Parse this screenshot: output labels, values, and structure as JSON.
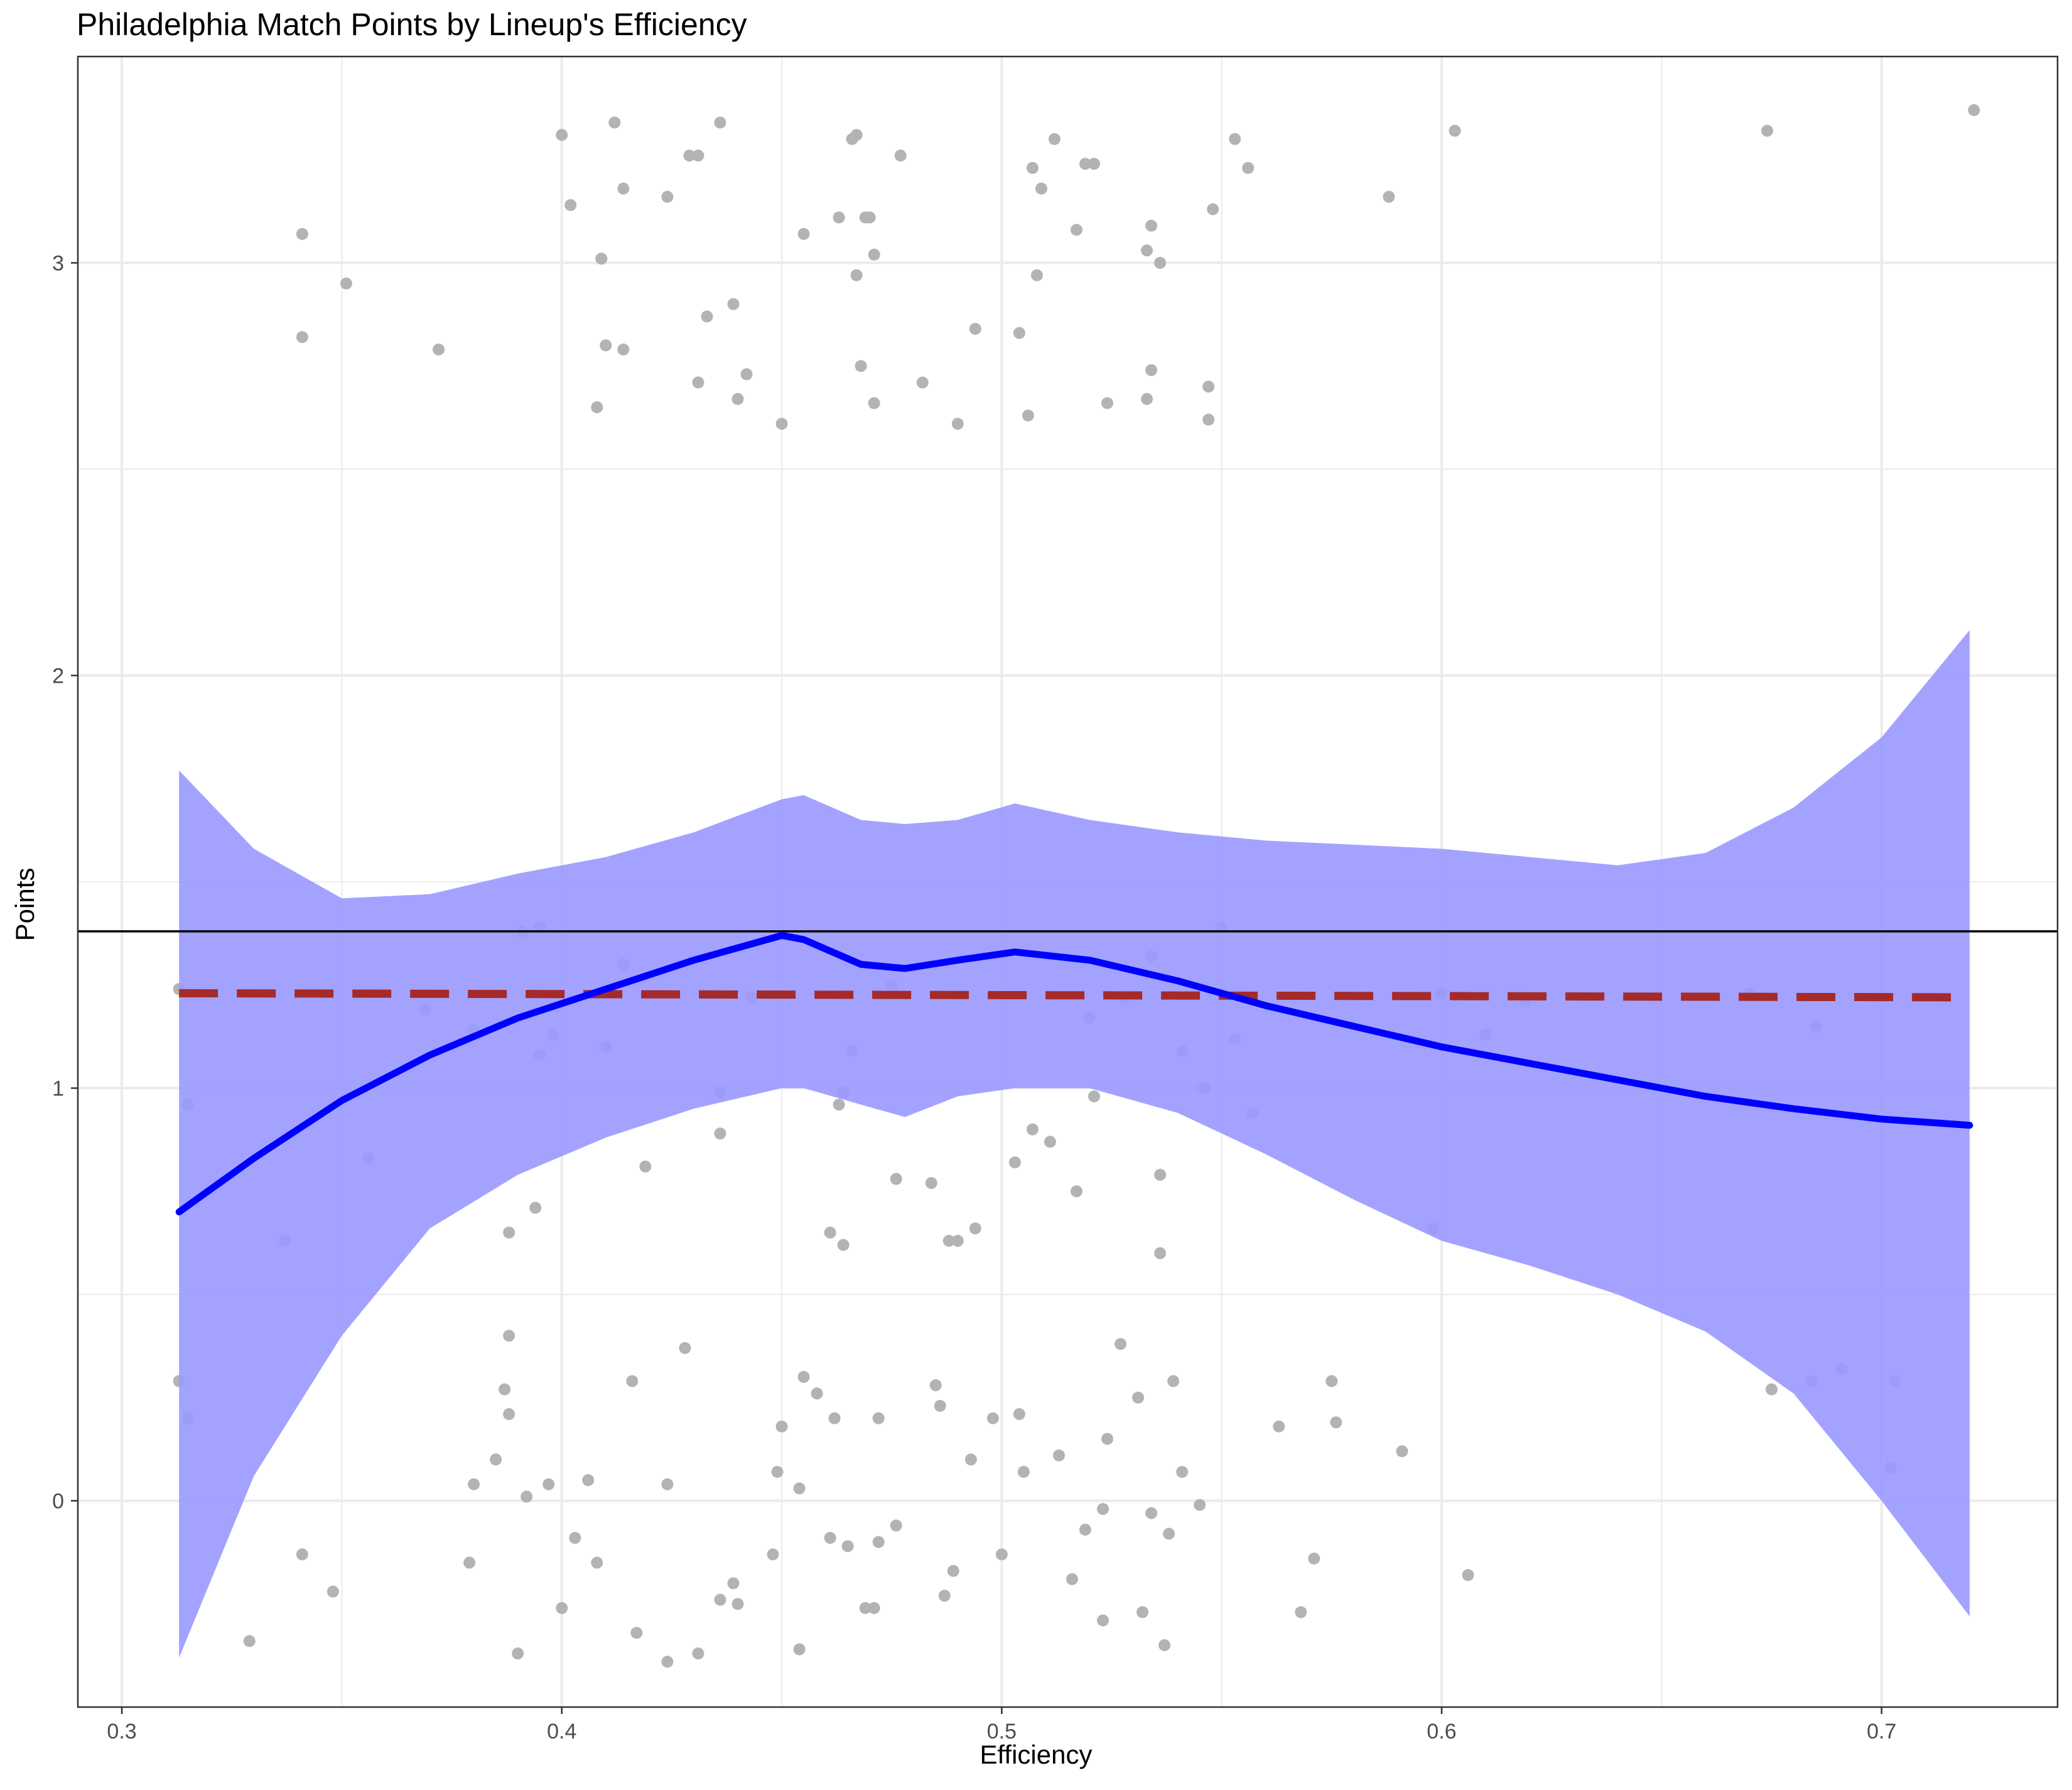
{
  "chart_data": {
    "type": "scatter",
    "title": "Philadelphia Match Points by Lineup's Efficiency",
    "xlabel": "Efficiency",
    "ylabel": "Points",
    "xlim": [
      0.29,
      0.74
    ],
    "ylim": [
      -0.5,
      3.5
    ],
    "x_ticks": [
      "0.3",
      "0.4",
      "0.5",
      "0.6",
      "0.7"
    ],
    "y_ticks": [
      "0",
      "1",
      "2",
      "3"
    ],
    "x_tick_values": [
      0.3,
      0.4,
      0.5,
      0.6,
      0.7
    ],
    "y_tick_values": [
      0,
      1,
      2,
      3
    ],
    "grid": true,
    "colors": {
      "points": "#b3b3b3",
      "smooth_line": "#0000ff",
      "ribbon": "#9999ff",
      "mean_line": "#000000",
      "linear_fit": "#a52a2a",
      "grid": "#ebebeb",
      "panel_border": "#333333"
    },
    "mean_line_y": 1.38,
    "linear_fit": {
      "x": [
        0.313,
        0.72
      ],
      "y": [
        1.23,
        1.22
      ]
    },
    "smooth": {
      "x": [
        0.313,
        0.33,
        0.35,
        0.37,
        0.39,
        0.41,
        0.43,
        0.45,
        0.455,
        0.468,
        0.478,
        0.49,
        0.503,
        0.52,
        0.54,
        0.56,
        0.58,
        0.6,
        0.62,
        0.64,
        0.66,
        0.68,
        0.7,
        0.72
      ],
      "y": [
        0.7,
        0.83,
        0.97,
        1.08,
        1.17,
        1.24,
        1.31,
        1.37,
        1.36,
        1.3,
        1.29,
        1.31,
        1.33,
        1.31,
        1.26,
        1.2,
        1.15,
        1.1,
        1.06,
        1.02,
        0.98,
        0.95,
        0.925,
        0.91
      ],
      "lower": [
        -0.38,
        0.06,
        0.4,
        0.66,
        0.79,
        0.88,
        0.95,
        1.0,
        1.0,
        0.96,
        0.93,
        0.98,
        1.0,
        1.0,
        0.94,
        0.84,
        0.73,
        0.63,
        0.57,
        0.5,
        0.41,
        0.26,
        0.0,
        -0.28
      ],
      "upper": [
        1.77,
        1.58,
        1.46,
        1.47,
        1.52,
        1.56,
        1.62,
        1.7,
        1.71,
        1.65,
        1.64,
        1.65,
        1.69,
        1.65,
        1.62,
        1.6,
        1.59,
        1.58,
        1.56,
        1.54,
        1.57,
        1.68,
        1.85,
        2.11
      ]
    },
    "points": [
      [
        0.341,
        3.07
      ],
      [
        0.341,
        2.82
      ],
      [
        0.351,
        2.95
      ],
      [
        0.372,
        2.79
      ],
      [
        0.4,
        3.31
      ],
      [
        0.402,
        3.14
      ],
      [
        0.409,
        3.01
      ],
      [
        0.41,
        2.8
      ],
      [
        0.408,
        2.65
      ],
      [
        0.412,
        3.34
      ],
      [
        0.414,
        3.18
      ],
      [
        0.414,
        2.79
      ],
      [
        0.424,
        3.16
      ],
      [
        0.429,
        3.26
      ],
      [
        0.431,
        3.26
      ],
      [
        0.433,
        2.87
      ],
      [
        0.431,
        2.71
      ],
      [
        0.436,
        3.34
      ],
      [
        0.439,
        2.9
      ],
      [
        0.44,
        2.67
      ],
      [
        0.442,
        2.73
      ],
      [
        0.45,
        2.61
      ],
      [
        0.455,
        3.07
      ],
      [
        0.463,
        3.11
      ],
      [
        0.466,
        3.3
      ],
      [
        0.467,
        3.31
      ],
      [
        0.467,
        2.97
      ],
      [
        0.469,
        3.11
      ],
      [
        0.47,
        3.11
      ],
      [
        0.468,
        2.75
      ],
      [
        0.471,
        3.02
      ],
      [
        0.471,
        2.66
      ],
      [
        0.477,
        3.26
      ],
      [
        0.482,
        2.71
      ],
      [
        0.49,
        2.61
      ],
      [
        0.494,
        2.84
      ],
      [
        0.504,
        2.83
      ],
      [
        0.506,
        2.63
      ],
      [
        0.507,
        3.23
      ],
      [
        0.508,
        2.97
      ],
      [
        0.509,
        3.18
      ],
      [
        0.512,
        3.3
      ],
      [
        0.517,
        3.08
      ],
      [
        0.519,
        3.24
      ],
      [
        0.521,
        3.24
      ],
      [
        0.524,
        2.66
      ],
      [
        0.533,
        3.03
      ],
      [
        0.534,
        3.09
      ],
      [
        0.534,
        2.74
      ],
      [
        0.533,
        2.67
      ],
      [
        0.536,
        3.0
      ],
      [
        0.547,
        2.62
      ],
      [
        0.547,
        2.7
      ],
      [
        0.548,
        3.13
      ],
      [
        0.553,
        3.3
      ],
      [
        0.556,
        3.23
      ],
      [
        0.588,
        3.16
      ],
      [
        0.603,
        3.32
      ],
      [
        0.674,
        3.32
      ],
      [
        0.721,
        3.37
      ],
      [
        0.313,
        1.24
      ],
      [
        0.315,
        0.96
      ],
      [
        0.337,
        0.63
      ],
      [
        0.356,
        0.83
      ],
      [
        0.369,
        1.19
      ],
      [
        0.38,
        1.14
      ],
      [
        0.391,
        1.38
      ],
      [
        0.394,
        0.71
      ],
      [
        0.395,
        1.39
      ],
      [
        0.395,
        1.08
      ],
      [
        0.398,
        1.13
      ],
      [
        0.41,
        1.1
      ],
      [
        0.414,
        1.3
      ],
      [
        0.419,
        0.81
      ],
      [
        0.388,
        0.65
      ],
      [
        0.436,
        0.99
      ],
      [
        0.436,
        0.89
      ],
      [
        0.443,
        1.22
      ],
      [
        0.461,
        0.65
      ],
      [
        0.464,
        0.62
      ],
      [
        0.463,
        0.96
      ],
      [
        0.464,
        0.99
      ],
      [
        0.466,
        1.09
      ],
      [
        0.475,
        1.25
      ],
      [
        0.476,
        0.78
      ],
      [
        0.484,
        0.77
      ],
      [
        0.488,
        0.63
      ],
      [
        0.49,
        0.63
      ],
      [
        0.494,
        0.66
      ],
      [
        0.503,
        0.82
      ],
      [
        0.507,
        0.9
      ],
      [
        0.511,
        0.87
      ],
      [
        0.517,
        0.75
      ],
      [
        0.52,
        1.17
      ],
      [
        0.521,
        0.98
      ],
      [
        0.528,
        1.22
      ],
      [
        0.534,
        1.32
      ],
      [
        0.536,
        0.79
      ],
      [
        0.536,
        0.6
      ],
      [
        0.541,
        1.09
      ],
      [
        0.546,
        1.0
      ],
      [
        0.55,
        1.39
      ],
      [
        0.553,
        1.12
      ],
      [
        0.557,
        0.94
      ],
      [
        0.598,
        0.66
      ],
      [
        0.6,
        1.23
      ],
      [
        0.61,
        1.13
      ],
      [
        0.619,
        1.21
      ],
      [
        0.67,
        1.23
      ],
      [
        0.685,
        1.15
      ],
      [
        0.313,
        0.29
      ],
      [
        0.315,
        0.2
      ],
      [
        0.329,
        -0.34
      ],
      [
        0.341,
        -0.13
      ],
      [
        0.348,
        -0.22
      ],
      [
        0.379,
        -0.15
      ],
      [
        0.38,
        0.04
      ],
      [
        0.385,
        0.1
      ],
      [
        0.387,
        0.27
      ],
      [
        0.388,
        0.21
      ],
      [
        0.388,
        0.4
      ],
      [
        0.39,
        -0.37
      ],
      [
        0.392,
        0.01
      ],
      [
        0.397,
        0.04
      ],
      [
        0.4,
        -0.26
      ],
      [
        0.403,
        -0.09
      ],
      [
        0.406,
        0.05
      ],
      [
        0.408,
        -0.15
      ],
      [
        0.416,
        0.29
      ],
      [
        0.417,
        -0.32
      ],
      [
        0.424,
        -0.39
      ],
      [
        0.424,
        0.04
      ],
      [
        0.428,
        0.37
      ],
      [
        0.431,
        -0.37
      ],
      [
        0.436,
        -0.24
      ],
      [
        0.439,
        -0.2
      ],
      [
        0.44,
        -0.25
      ],
      [
        0.448,
        -0.13
      ],
      [
        0.449,
        0.07
      ],
      [
        0.45,
        0.18
      ],
      [
        0.454,
        0.03
      ],
      [
        0.454,
        -0.36
      ],
      [
        0.455,
        0.3
      ],
      [
        0.458,
        0.26
      ],
      [
        0.461,
        -0.09
      ],
      [
        0.462,
        0.2
      ],
      [
        0.465,
        -0.11
      ],
      [
        0.469,
        -0.26
      ],
      [
        0.471,
        -0.26
      ],
      [
        0.472,
        0.2
      ],
      [
        0.472,
        -0.1
      ],
      [
        0.476,
        -0.06
      ],
      [
        0.485,
        0.28
      ],
      [
        0.486,
        0.23
      ],
      [
        0.487,
        -0.23
      ],
      [
        0.489,
        -0.17
      ],
      [
        0.493,
        0.1
      ],
      [
        0.498,
        0.2
      ],
      [
        0.5,
        -0.13
      ],
      [
        0.504,
        0.21
      ],
      [
        0.505,
        0.07
      ],
      [
        0.513,
        0.11
      ],
      [
        0.516,
        -0.19
      ],
      [
        0.519,
        -0.07
      ],
      [
        0.523,
        -0.29
      ],
      [
        0.523,
        -0.02
      ],
      [
        0.524,
        0.15
      ],
      [
        0.527,
        0.38
      ],
      [
        0.531,
        0.25
      ],
      [
        0.532,
        -0.27
      ],
      [
        0.534,
        -0.03
      ],
      [
        0.537,
        -0.35
      ],
      [
        0.538,
        -0.08
      ],
      [
        0.539,
        0.29
      ],
      [
        0.541,
        0.07
      ],
      [
        0.545,
        -0.01
      ],
      [
        0.563,
        0.18
      ],
      [
        0.568,
        -0.27
      ],
      [
        0.571,
        -0.14
      ],
      [
        0.575,
        0.29
      ],
      [
        0.576,
        0.19
      ],
      [
        0.591,
        0.12
      ],
      [
        0.606,
        -0.18
      ],
      [
        0.675,
        0.27
      ],
      [
        0.684,
        0.29
      ],
      [
        0.691,
        0.32
      ],
      [
        0.702,
        0.08
      ],
      [
        0.703,
        0.29
      ]
    ]
  }
}
